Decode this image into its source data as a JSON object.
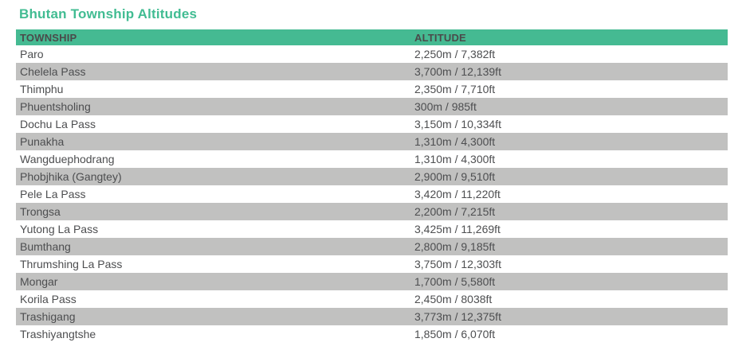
{
  "page": {
    "title": "Bhutan Township Altitudes"
  },
  "table": {
    "columns": [
      {
        "label": "TOWNSHIP"
      },
      {
        "label": "ALTITUDE"
      }
    ],
    "rows": [
      {
        "township": "Paro",
        "altitude": "2,250m / 7,382ft"
      },
      {
        "township": "Chelela Pass",
        "altitude": "3,700m / 12,139ft"
      },
      {
        "township": "Thimphu",
        "altitude": "2,350m / 7,710ft"
      },
      {
        "township": "Phuentsholing",
        "altitude": "300m / 985ft"
      },
      {
        "township": "Dochu La Pass",
        "altitude": "3,150m / 10,334ft"
      },
      {
        "township": "Punakha",
        "altitude": "1,310m / 4,300ft"
      },
      {
        "township": "Wangduephodrang",
        "altitude": "1,310m / 4,300ft"
      },
      {
        "township": "Phobjhika (Gangtey)",
        "altitude": "2,900m / 9,510ft"
      },
      {
        "township": "Pele La Pass",
        "altitude": "3,420m / 11,220ft"
      },
      {
        "township": "Trongsa",
        "altitude": "2,200m / 7,215ft"
      },
      {
        "township": "Yutong La Pass",
        "altitude": "3,425m / 11,269ft"
      },
      {
        "township": "Bumthang",
        "altitude": "2,800m / 9,185ft"
      },
      {
        "township": "Thrumshing La Pass",
        "altitude": "3,750m / 12,303ft"
      },
      {
        "township": "Mongar",
        "altitude": "1,700m / 5,580ft"
      },
      {
        "township": "Korila Pass",
        "altitude": "2,450m / 8038ft"
      },
      {
        "township": "Trashigang",
        "altitude": "3,773m / 12,375ft"
      },
      {
        "township": "Trashiyangtshe",
        "altitude": "1,850m / 6,070ft"
      }
    ]
  },
  "colors": {
    "accent_green": "#41BC92",
    "header_bg": "#45BA92",
    "header_text": "#4A4A4A",
    "row_alt_bg": "#C1C1C0",
    "body_text": "#4D4E50"
  },
  "chart_data": {
    "type": "table",
    "title": "Bhutan Township Altitudes",
    "columns": [
      "TOWNSHIP",
      "ALTITUDE"
    ],
    "rows": [
      [
        "Paro",
        "2,250m / 7,382ft"
      ],
      [
        "Chelela Pass",
        "3,700m / 12,139ft"
      ],
      [
        "Thimphu",
        "2,350m / 7,710ft"
      ],
      [
        "Phuentsholing",
        "300m / 985ft"
      ],
      [
        "Dochu La Pass",
        "3,150m / 10,334ft"
      ],
      [
        "Punakha",
        "1,310m / 4,300ft"
      ],
      [
        "Wangduephodrang",
        "1,310m / 4,300ft"
      ],
      [
        "Phobjhika (Gangtey)",
        "2,900m / 9,510ft"
      ],
      [
        "Pele La Pass",
        "3,420m / 11,220ft"
      ],
      [
        "Trongsa",
        "2,200m / 7,215ft"
      ],
      [
        "Yutong La Pass",
        "3,425m / 11,269ft"
      ],
      [
        "Bumthang",
        "2,800m / 9,185ft"
      ],
      [
        "Thrumshing La Pass",
        "3,750m / 12,303ft"
      ],
      [
        "Mongar",
        "1,700m / 5,580ft"
      ],
      [
        "Korila Pass",
        "2,450m / 8038ft"
      ],
      [
        "Trashigang",
        "3,773m / 12,375ft"
      ],
      [
        "Trashiyangtshe",
        "1,850m / 6,070ft"
      ]
    ]
  }
}
